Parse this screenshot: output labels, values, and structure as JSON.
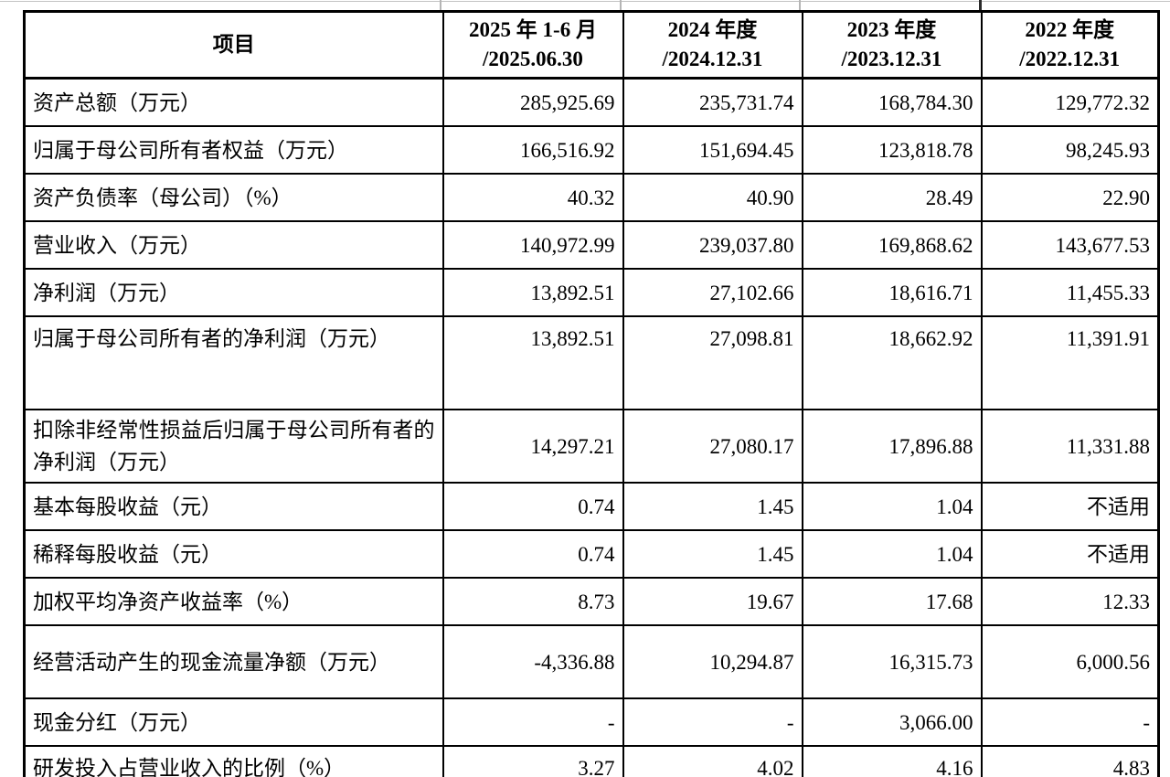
{
  "page": {
    "background_color": "#ffffff",
    "text_color": "#000000",
    "border_color": "#000000"
  },
  "table": {
    "header": {
      "item_column": "项目",
      "period_columns": [
        {
          "line1": "2025 年 1-6 月",
          "line2": "/2025.06.30"
        },
        {
          "line1": "2024 年度",
          "line2": "/2024.12.31"
        },
        {
          "line1": "2023 年度",
          "line2": "/2023.12.31"
        },
        {
          "line1": "2022 年度",
          "line2": "/2022.12.31"
        }
      ]
    },
    "rows": [
      {
        "label": "资产总额（万元）",
        "values": [
          "285,925.69",
          "235,731.74",
          "168,784.30",
          "129,772.32"
        ]
      },
      {
        "label": "归属于母公司所有者权益（万元）",
        "values": [
          "166,516.92",
          "151,694.45",
          "123,818.78",
          "98,245.93"
        ]
      },
      {
        "label": "资产负债率（母公司）（%）",
        "values": [
          "40.32",
          "40.90",
          "28.49",
          "22.90"
        ]
      },
      {
        "label": "营业收入（万元）",
        "values": [
          "140,972.99",
          "239,037.80",
          "169,868.62",
          "143,677.53"
        ]
      },
      {
        "label": "净利润（万元）",
        "values": [
          "13,892.51",
          "27,102.66",
          "18,616.71",
          "11,455.33"
        ]
      },
      {
        "label": "归属于母公司所有者的净利润（万元）",
        "values": [
          "13,892.51",
          "27,098.81",
          "18,662.92",
          "11,391.91"
        ]
      },
      {
        "label": "扣除非经常性损益后归属于母公司所有者的净利润（万元）",
        "values": [
          "14,297.21",
          "27,080.17",
          "17,896.88",
          "11,331.88"
        ]
      },
      {
        "label": "基本每股收益（元）",
        "values": [
          "0.74",
          "1.45",
          "1.04",
          "不适用"
        ]
      },
      {
        "label": "稀释每股收益（元）",
        "values": [
          "0.74",
          "1.45",
          "1.04",
          "不适用"
        ]
      },
      {
        "label": "加权平均净资产收益率（%）",
        "values": [
          "8.73",
          "19.67",
          "17.68",
          "12.33"
        ]
      },
      {
        "label": "经营活动产生的现金流量净额（万元）",
        "values": [
          "-4,336.88",
          "10,294.87",
          "16,315.73",
          "6,000.56"
        ]
      },
      {
        "label": "现金分红（万元）",
        "values": [
          "-",
          "-",
          "3,066.00",
          "-"
        ]
      },
      {
        "label": "研发投入占营业收入的比例（%）",
        "values": [
          "3.27",
          "4.02",
          "4.16",
          "4.83"
        ]
      }
    ]
  }
}
